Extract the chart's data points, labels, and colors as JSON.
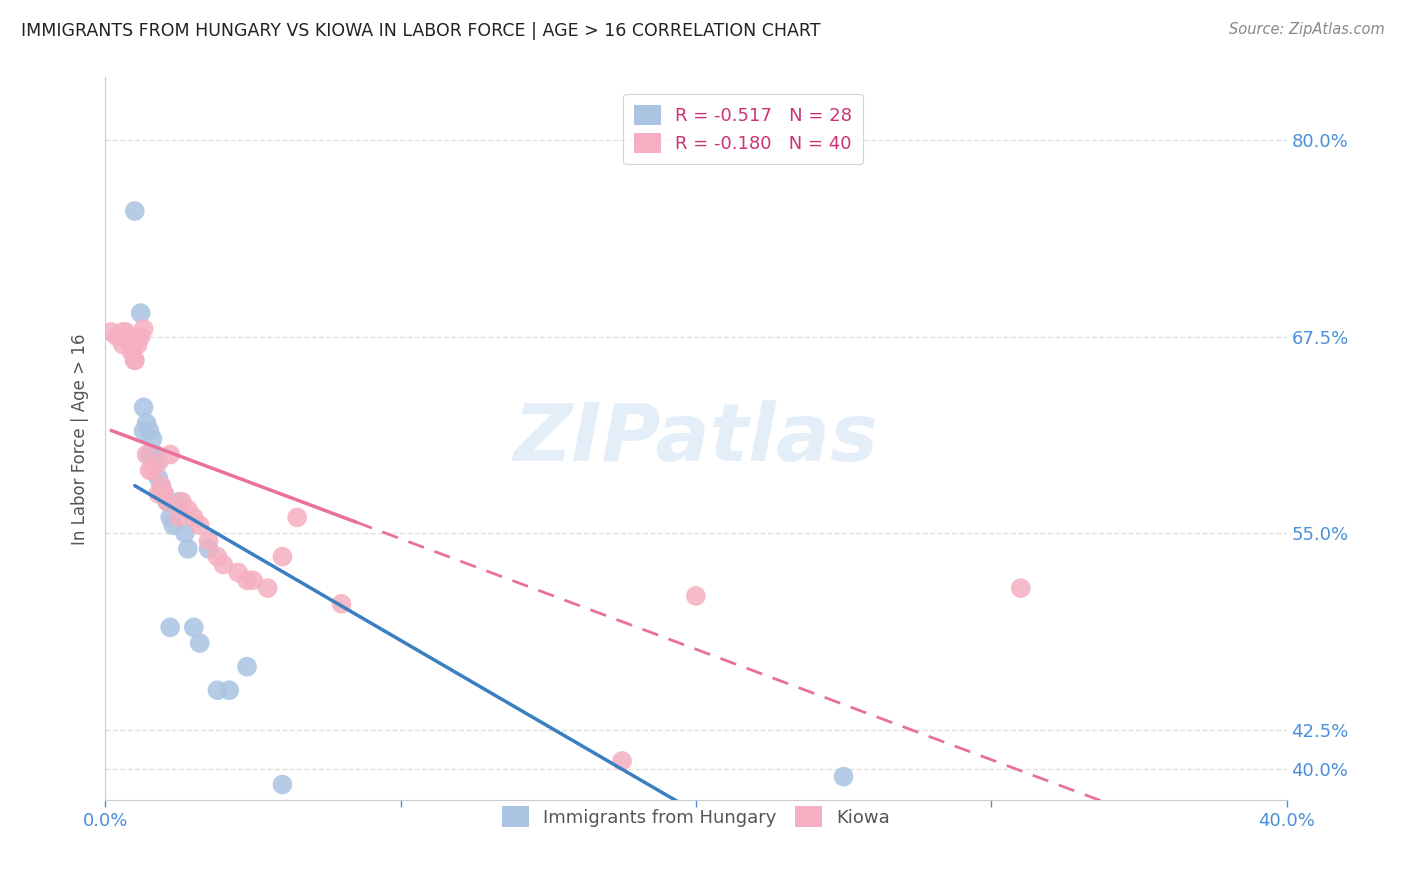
{
  "title": "IMMIGRANTS FROM HUNGARY VS KIOWA IN LABOR FORCE | AGE > 16 CORRELATION CHART",
  "source": "Source: ZipAtlas.com",
  "ylabel_label": "In Labor Force | Age > 16",
  "legend1_r": "R = -0.517",
  "legend1_n": "N = 28",
  "legend2_r": "R = -0.180",
  "legend2_n": "N = 40",
  "legend1_color": "#aac4e2",
  "legend2_color": "#f5afc0",
  "trendline1_color": "#3a7fc1",
  "trendline2_color": "#e8709a",
  "watermark": "ZIPatlas",
  "xlim": [
    0.0,
    0.4
  ],
  "ylim": [
    0.38,
    0.84
  ],
  "xtick_positions": [
    0.0,
    0.1,
    0.2,
    0.3,
    0.4
  ],
  "xticklabels": [
    "0.0%",
    "",
    "",
    "",
    "40.0%"
  ],
  "ytick_positions": [
    0.4,
    0.425,
    0.55,
    0.675,
    0.8
  ],
  "yticklabels": [
    "40.0%",
    "42.5%",
    "55.0%",
    "67.5%",
    "80.0%"
  ],
  "background_color": "#ffffff",
  "grid_color": "#e0e0e0",
  "hungary_x": [
    0.01,
    0.012,
    0.013,
    0.013,
    0.014,
    0.015,
    0.015,
    0.016,
    0.017,
    0.017,
    0.018,
    0.019,
    0.02,
    0.021,
    0.022,
    0.023,
    0.025,
    0.027,
    0.028,
    0.032,
    0.035,
    0.038,
    0.042,
    0.048,
    0.022,
    0.03,
    0.06,
    0.25
  ],
  "hungary_y": [
    0.755,
    0.69,
    0.63,
    0.615,
    0.62,
    0.615,
    0.6,
    0.61,
    0.6,
    0.595,
    0.585,
    0.58,
    0.575,
    0.57,
    0.56,
    0.555,
    0.57,
    0.55,
    0.54,
    0.48,
    0.54,
    0.45,
    0.45,
    0.465,
    0.49,
    0.49,
    0.39,
    0.395
  ],
  "kiowa_x": [
    0.002,
    0.004,
    0.006,
    0.006,
    0.007,
    0.008,
    0.009,
    0.009,
    0.01,
    0.01,
    0.011,
    0.012,
    0.013,
    0.014,
    0.015,
    0.016,
    0.018,
    0.018,
    0.019,
    0.02,
    0.021,
    0.022,
    0.025,
    0.026,
    0.028,
    0.03,
    0.032,
    0.035,
    0.038,
    0.04,
    0.045,
    0.048,
    0.05,
    0.055,
    0.06,
    0.065,
    0.08,
    0.175,
    0.2,
    0.31
  ],
  "kiowa_y": [
    0.678,
    0.675,
    0.678,
    0.67,
    0.678,
    0.672,
    0.67,
    0.665,
    0.66,
    0.66,
    0.67,
    0.675,
    0.68,
    0.6,
    0.59,
    0.59,
    0.575,
    0.595,
    0.58,
    0.575,
    0.57,
    0.6,
    0.56,
    0.57,
    0.565,
    0.56,
    0.555,
    0.545,
    0.535,
    0.53,
    0.525,
    0.52,
    0.52,
    0.515,
    0.535,
    0.56,
    0.505,
    0.405,
    0.51,
    0.515
  ],
  "trend1_x_start": 0.01,
  "trend1_x_end": 0.4,
  "trend2_x_start": 0.002,
  "trend2_x_end": 0.4,
  "trend2_solid_end": 0.085
}
